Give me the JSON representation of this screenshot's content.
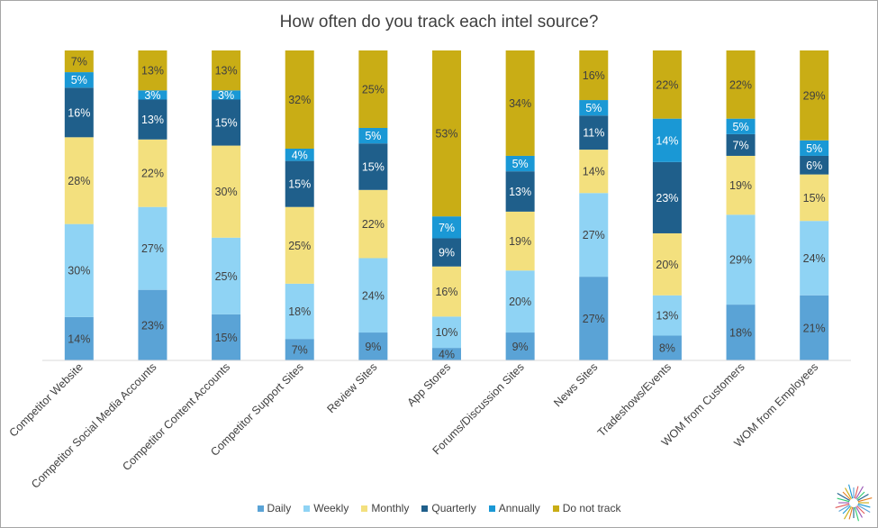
{
  "chart_data": {
    "type": "bar",
    "stacked": true,
    "title": "How often do you track each intel source?",
    "xlabel": "",
    "ylabel": "",
    "ylim": [
      0,
      100
    ],
    "grid": false,
    "legend_position": "bottom",
    "value_suffix": "%",
    "categories": [
      "Competitor Website",
      "Competitor Social Media Accounts",
      "Competitor Content Accounts",
      "Competitor Support Sites",
      "Review Sites",
      "App Stores",
      "Forums/Discussion Sites",
      "News Sites",
      "Tradeshows/Events",
      "WOM from Customers",
      "WOM from Employees"
    ],
    "series": [
      {
        "name": "Daily",
        "color": "#5aa3d6",
        "label_color": "#404040",
        "values": [
          14,
          23,
          15,
          7,
          9,
          4,
          9,
          27,
          8,
          18,
          21
        ]
      },
      {
        "name": "Weekly",
        "color": "#8fd3f4",
        "label_color": "#404040",
        "values": [
          30,
          27,
          25,
          18,
          24,
          10,
          20,
          27,
          13,
          29,
          24
        ]
      },
      {
        "name": "Monthly",
        "color": "#f3e07e",
        "label_color": "#404040",
        "values": [
          28,
          22,
          30,
          25,
          22,
          16,
          19,
          14,
          20,
          19,
          15
        ]
      },
      {
        "name": "Quarterly",
        "color": "#1f5f8b",
        "label_color": "#ffffff",
        "values": [
          16,
          13,
          15,
          15,
          15,
          9,
          13,
          11,
          23,
          7,
          6
        ]
      },
      {
        "name": "Annually",
        "color": "#1a98d5",
        "label_color": "#ffffff",
        "values": [
          5,
          3,
          3,
          4,
          5,
          7,
          5,
          5,
          14,
          5,
          5
        ]
      },
      {
        "name": "Do not track",
        "color": "#c9ad15",
        "label_color": "#404040",
        "values": [
          7,
          13,
          13,
          32,
          25,
          53,
          34,
          16,
          22,
          22,
          29
        ]
      }
    ]
  }
}
